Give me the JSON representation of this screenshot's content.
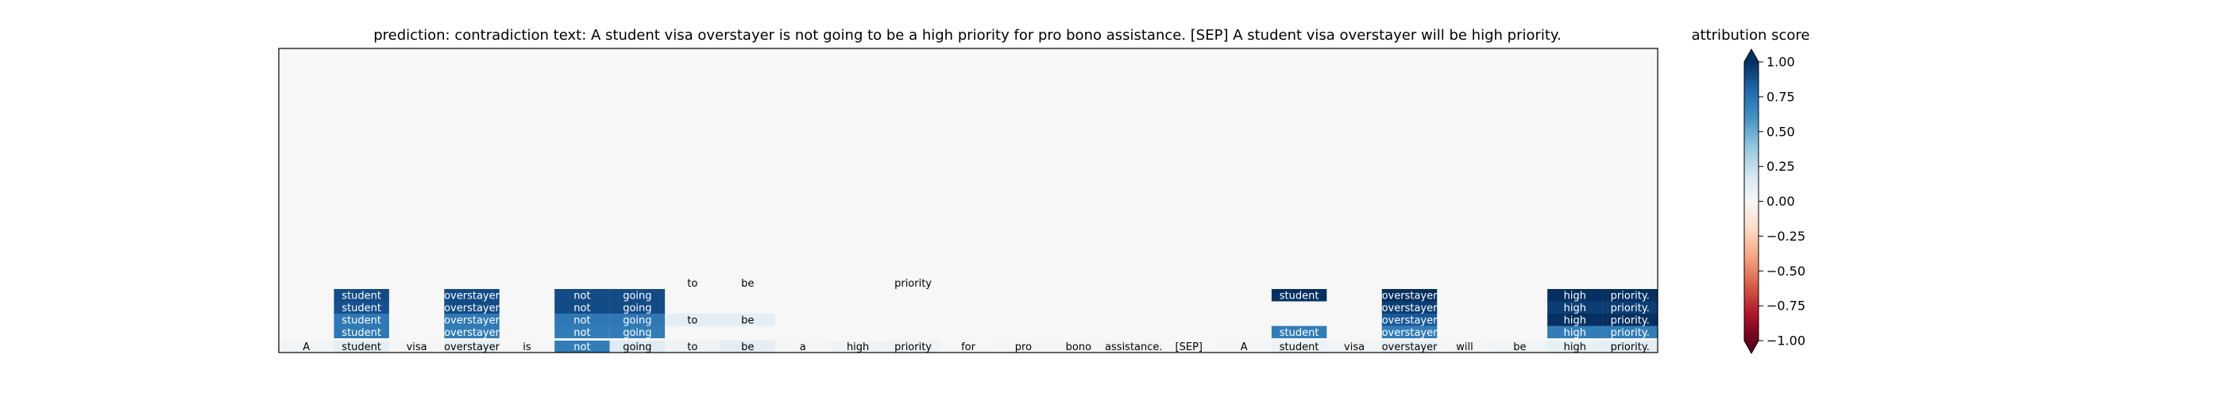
{
  "chart_data": {
    "type": "heatmap",
    "title": "prediction:  contradiction     text:  A student visa overstayer is not going to be a high priority for pro bono assistance. [SEP] A student visa overstayer will be high priority.",
    "tokens": [
      "A",
      "student",
      "visa",
      "overstayer",
      "is",
      "not",
      "going",
      "to",
      "be",
      "a",
      "high",
      "priority",
      "for",
      "pro",
      "bono",
      "assistance.",
      "[SEP]",
      "A",
      "student",
      "visa",
      "overstayer",
      "will",
      "be",
      "high",
      "priority."
    ],
    "base_scores": [
      0.03,
      0.1,
      0.02,
      0.08,
      0.01,
      0.7,
      0.12,
      0.05,
      0.1,
      0.02,
      0.04,
      0.06,
      0.01,
      0.02,
      0.02,
      0.03,
      0.0,
      0.02,
      0.06,
      0.03,
      0.08,
      0.02,
      0.03,
      0.08,
      0.1
    ],
    "stack_rows": [
      [
        [
          1,
          0.72
        ],
        [
          3,
          0.7
        ],
        [
          5,
          0.7
        ],
        [
          6,
          0.7
        ],
        [
          18,
          0.7
        ],
        [
          20,
          0.7
        ],
        [
          23,
          0.7
        ],
        [
          24,
          0.7
        ]
      ],
      [
        [
          1,
          0.72
        ],
        [
          3,
          0.72
        ],
        [
          5,
          0.72
        ],
        [
          6,
          0.72
        ],
        [
          7,
          0.1
        ],
        [
          8,
          0.1
        ],
        [
          20,
          0.85
        ],
        [
          23,
          1.0
        ],
        [
          24,
          1.0
        ]
      ],
      [
        [
          1,
          0.88
        ],
        [
          3,
          0.9
        ],
        [
          5,
          0.9
        ],
        [
          6,
          0.9
        ],
        [
          20,
          0.95
        ],
        [
          23,
          0.95
        ],
        [
          24,
          0.95
        ]
      ],
      [
        [
          1,
          0.9
        ],
        [
          3,
          0.9
        ],
        [
          5,
          0.9
        ],
        [
          6,
          0.9
        ],
        [
          18,
          1.0
        ],
        [
          20,
          1.0
        ],
        [
          23,
          1.0
        ],
        [
          24,
          1.0
        ]
      ],
      [
        [
          7,
          0.0
        ],
        [
          8,
          0.0
        ],
        [
          11,
          0.0
        ]
      ]
    ],
    "row_order": "bottom-to-top",
    "colorbar": {
      "label": "attribution score",
      "ticks": [
        "1.00",
        "0.75",
        "0.50",
        "0.25",
        "0.00",
        "−0.25",
        "−0.50",
        "−0.75",
        "−1.00"
      ],
      "range": [
        -1,
        1
      ],
      "colormap": "RdBu"
    }
  }
}
